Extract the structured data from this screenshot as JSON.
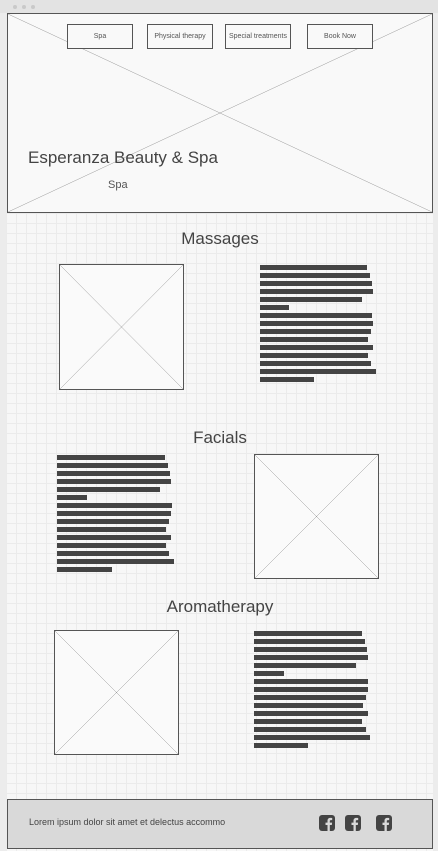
{
  "nav": {
    "items": [
      {
        "label": "Spa"
      },
      {
        "label": "Physical therapy"
      },
      {
        "label": "Special treatments"
      },
      {
        "label": "Book Now"
      }
    ]
  },
  "hero": {
    "title": "Esperanza Beauty & Spa",
    "subtitle": "Spa"
  },
  "sections": [
    {
      "heading": "Massages"
    },
    {
      "heading": "Facials"
    },
    {
      "heading": "Aromatherapy"
    }
  ],
  "footer": {
    "text": "Lorem ipsum dolor sit amet et delectus accommo",
    "social_icons": [
      "facebook-icon",
      "facebook-icon",
      "facebook-icon"
    ]
  },
  "colors": {
    "text": "#444444",
    "border": "#555555",
    "footer_bg": "#d9d9d9"
  }
}
